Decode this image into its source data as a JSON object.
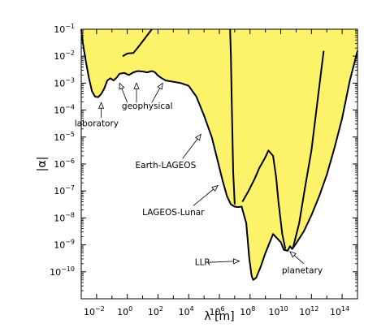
{
  "chart_data": {
    "type": "area",
    "xlabel": "λ  [m]",
    "ylabel": "|α|",
    "x_scale": "log10",
    "y_scale": "log10",
    "xlim_log10": [
      -3,
      15
    ],
    "ylim_log10": [
      -11,
      -1
    ],
    "x_ticks": [
      {
        "log": -2,
        "base": "10",
        "exp": "−2"
      },
      {
        "log": 0,
        "base": "10",
        "exp": "0"
      },
      {
        "log": 2,
        "base": "10",
        "exp": "2"
      },
      {
        "log": 4,
        "base": "10",
        "exp": "4"
      },
      {
        "log": 6,
        "base": "10",
        "exp": "6"
      },
      {
        "log": 8,
        "base": "10",
        "exp": "8"
      },
      {
        "log": 10,
        "base": "10",
        "exp": "10"
      },
      {
        "log": 12,
        "base": "10",
        "exp": "12"
      },
      {
        "log": 14,
        "base": "10",
        "exp": "14"
      }
    ],
    "y_ticks": [
      {
        "log": -1,
        "base": "10",
        "exp": "−1"
      },
      {
        "log": -2,
        "base": "10",
        "exp": "−2"
      },
      {
        "log": -3,
        "base": "10",
        "exp": "−3"
      },
      {
        "log": -4,
        "base": "10",
        "exp": "−4"
      },
      {
        "log": -5,
        "base": "10",
        "exp": "−5"
      },
      {
        "log": -6,
        "base": "10",
        "exp": "−6"
      },
      {
        "log": -7,
        "base": "10",
        "exp": "−7"
      },
      {
        "log": -8,
        "base": "10",
        "exp": "−8"
      },
      {
        "log": -9,
        "base": "10",
        "exp": "−9"
      },
      {
        "log": -10,
        "base": "10",
        "exp": "−10"
      }
    ],
    "fill_color": "#fdf36b",
    "line_color": "#000000",
    "boundary": [
      [
        -3,
        -1
      ],
      [
        -2.9,
        -1.5
      ],
      [
        -2.7,
        -2.2
      ],
      [
        -2.5,
        -2.8
      ],
      [
        -2.3,
        -3.3
      ],
      [
        -2.1,
        -3.5
      ],
      [
        -1.9,
        -3.52
      ],
      [
        -1.7,
        -3.4
      ],
      [
        -1.5,
        -3.2
      ],
      [
        -1.3,
        -2.9
      ],
      [
        -1.1,
        -2.82
      ],
      [
        -0.9,
        -2.9
      ],
      [
        -0.7,
        -2.8
      ],
      [
        -0.5,
        -2.65
      ],
      [
        -0.2,
        -2.62
      ],
      [
        0.1,
        -2.7
      ],
      [
        0.4,
        -2.6
      ],
      [
        0.7,
        -2.55
      ],
      [
        1.0,
        -2.57
      ],
      [
        1.3,
        -2.6
      ],
      [
        1.6,
        -2.55
      ],
      [
        1.8,
        -2.6
      ],
      [
        2.0,
        -2.72
      ],
      [
        2.2,
        -2.8
      ],
      [
        2.5,
        -2.9
      ],
      [
        3.0,
        -2.95
      ],
      [
        3.5,
        -3.0
      ],
      [
        4.0,
        -3.1
      ],
      [
        4.5,
        -3.5
      ],
      [
        5.0,
        -4.2
      ],
      [
        5.5,
        -5.0
      ],
      [
        5.9,
        -5.9
      ],
      [
        6.2,
        -6.6
      ],
      [
        6.5,
        -7.2
      ],
      [
        6.75,
        -7.5
      ],
      [
        7.0,
        -7.58
      ],
      [
        7.2,
        -7.6
      ],
      [
        7.45,
        -7.58
      ],
      [
        7.75,
        -8.2
      ],
      [
        7.95,
        -9.5
      ],
      [
        8.1,
        -10.15
      ],
      [
        8.2,
        -10.3
      ],
      [
        8.4,
        -10.22
      ],
      [
        8.7,
        -9.8
      ],
      [
        9.0,
        -9.3
      ],
      [
        9.5,
        -8.6
      ],
      [
        10.0,
        -8.9
      ],
      [
        10.2,
        -9.18
      ],
      [
        10.45,
        -9.22
      ],
      [
        10.6,
        -9.05
      ],
      [
        10.75,
        -9.15
      ],
      [
        11.0,
        -8.95
      ],
      [
        11.5,
        -8.5
      ],
      [
        12.0,
        -7.9
      ],
      [
        12.5,
        -7.2
      ],
      [
        13.0,
        -6.4
      ],
      [
        13.5,
        -5.4
      ],
      [
        14.0,
        -4.3
      ],
      [
        14.5,
        -2.9
      ],
      [
        15,
        -1.8
      ],
      [
        15,
        -1
      ]
    ],
    "curves": [
      {
        "name": "Earth-LAGEOS",
        "points": [
          [
            -0.3,
            -2.0
          ],
          [
            0.0,
            -1.9
          ],
          [
            0.4,
            -1.88
          ],
          [
            0.8,
            -1.6
          ],
          [
            1.2,
            -1.3
          ],
          [
            1.6,
            -1.0
          ]
        ]
      },
      {
        "name": "LLR",
        "points": [
          [
            6.7,
            -1.0
          ],
          [
            6.75,
            -2.0
          ],
          [
            6.8,
            -3.5
          ],
          [
            6.85,
            -5.0
          ],
          [
            6.9,
            -6.3
          ],
          [
            7.0,
            -7.5
          ]
        ]
      },
      {
        "name": "LAGEOS-Lunar",
        "points": [
          [
            7.5,
            -7.4
          ],
          [
            7.9,
            -7.0
          ],
          [
            8.3,
            -6.55
          ],
          [
            8.6,
            -6.15
          ],
          [
            8.95,
            -5.8
          ],
          [
            9.2,
            -5.5
          ],
          [
            9.5,
            -5.7
          ],
          [
            9.7,
            -6.5
          ],
          [
            9.85,
            -7.4
          ],
          [
            10.1,
            -8.6
          ],
          [
            10.3,
            -9.15
          ]
        ]
      },
      {
        "name": "planetary",
        "points": [
          [
            10.8,
            -9.1
          ],
          [
            11.2,
            -8.2
          ],
          [
            11.6,
            -6.8
          ],
          [
            12.0,
            -5.5
          ],
          [
            12.3,
            -4.1
          ],
          [
            12.6,
            -2.7
          ],
          [
            12.8,
            -1.8
          ]
        ]
      }
    ],
    "annotations": [
      {
        "label": "laboratory",
        "text_x": -2.0,
        "text_y": -4.6,
        "arrows": [
          [
            -1.7,
            -4.28,
            -1.7,
            -3.72
          ]
        ]
      },
      {
        "label": "geophysical",
        "text_x": 1.3,
        "text_y": -3.95,
        "arrows": [
          [
            0.0,
            -3.72,
            -0.5,
            -3.0
          ],
          [
            0.6,
            -3.72,
            0.6,
            -3.0
          ],
          [
            1.6,
            -3.72,
            2.3,
            -3.0
          ]
        ]
      },
      {
        "label": "Earth-LAGEOS",
        "text_x": 2.5,
        "text_y": -6.15,
        "arrows": [
          [
            3.6,
            -5.8,
            4.8,
            -4.9
          ]
        ]
      },
      {
        "label": "LAGEOS-Lunar",
        "text_x": 3.0,
        "text_y": -7.9,
        "arrows": [
          [
            4.3,
            -7.55,
            5.9,
            -6.8
          ]
        ]
      },
      {
        "label": "LLR",
        "text_x": 4.9,
        "text_y": -9.75,
        "arrows": [
          [
            5.3,
            -9.65,
            7.3,
            -9.6
          ]
        ]
      },
      {
        "label": "planetary",
        "text_x": 11.4,
        "text_y": -10.05,
        "arrows": [
          [
            11.5,
            -9.7,
            10.6,
            -9.25
          ]
        ]
      }
    ]
  }
}
